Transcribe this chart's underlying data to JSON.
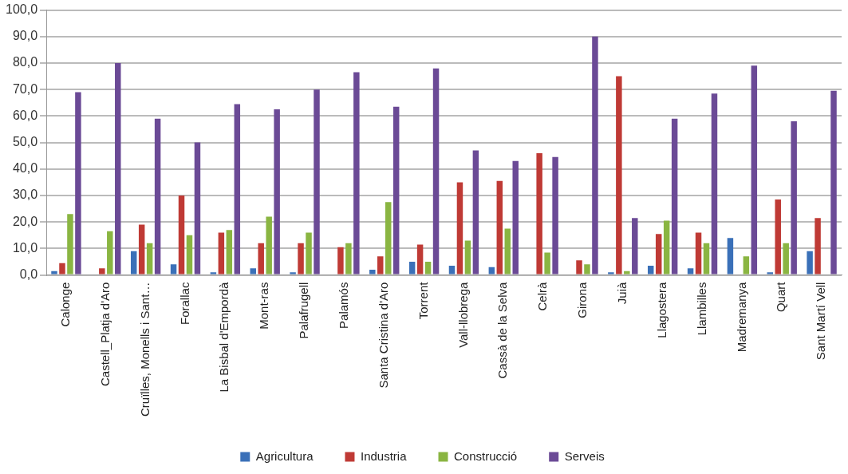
{
  "chart_data": {
    "type": "bar",
    "categories": [
      "Calonge",
      "Castell_Platja d'Aro",
      "Cruïlles, Monells i Sant…",
      "Forallac",
      "La Bisbal d'Empordà",
      "Mont-ras",
      "Palafrugell",
      "Palamós",
      "Santa Cristina d'Aro",
      "Torrent",
      "Vall-llobrega",
      "Cassà de la Selva",
      "Celrà",
      "Girona",
      "Juià",
      "Llagostera",
      "Llambilles",
      "Madremanya",
      "Quart",
      "Sant Martí Vell"
    ],
    "series": [
      {
        "name": "Agricultura",
        "color": "#3a70b8",
        "values": [
          1.5,
          0,
          9,
          4,
          1,
          2.5,
          1,
          0,
          2,
          5,
          3.5,
          3,
          0,
          0,
          1,
          3.5,
          2.5,
          14,
          1,
          9
        ]
      },
      {
        "name": "Industria",
        "color": "#bf3a35",
        "values": [
          4.5,
          2.5,
          19,
          30,
          16,
          12,
          12,
          10.5,
          7,
          11.5,
          35,
          35.5,
          46,
          5.5,
          75,
          15.5,
          16,
          0,
          28.5,
          21.5
        ]
      },
      {
        "name": "Construcció",
        "color": "#8ab542",
        "values": [
          23,
          16.5,
          12,
          15,
          17,
          22,
          16,
          12,
          27.5,
          5,
          13,
          17.5,
          8.5,
          4,
          1.5,
          20.5,
          12,
          7,
          12,
          null
        ]
      },
      {
        "name": "Serveis",
        "color": "#6b4a96",
        "values": [
          69,
          80,
          59,
          50,
          64.5,
          62.5,
          70,
          76.5,
          63.5,
          78,
          47,
          43,
          44.5,
          90,
          21.5,
          59,
          68.5,
          79,
          58,
          69.5
        ]
      }
    ],
    "ylim": [
      0,
      100
    ],
    "yticks": [
      {
        "value": 0,
        "label": "0,0"
      },
      {
        "value": 10,
        "label": "10,0"
      },
      {
        "value": 20,
        "label": "20,0"
      },
      {
        "value": 30,
        "label": "30,0"
      },
      {
        "value": 40,
        "label": "40,0"
      },
      {
        "value": 50,
        "label": "50,0"
      },
      {
        "value": 60,
        "label": "60,0"
      },
      {
        "value": 70,
        "label": "70,0"
      },
      {
        "value": 80,
        "label": "80,0"
      },
      {
        "value": 90,
        "label": "90,0"
      },
      {
        "value": 100,
        "label": "100,0"
      }
    ],
    "grid": "y",
    "legend": "bottom"
  }
}
